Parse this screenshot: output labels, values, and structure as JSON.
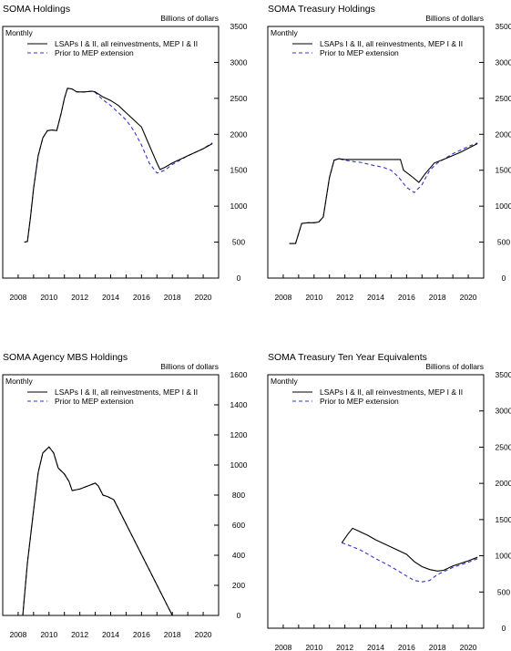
{
  "chart_data": [
    {
      "type": "line",
      "title": "SOMA Holdings",
      "frequency_label": "Monthly",
      "ylabel": "Billions of dollars",
      "ylim": [
        0,
        3500
      ],
      "yticks": [
        0,
        500,
        1000,
        1500,
        2000,
        2500,
        3000,
        3500
      ],
      "xlim": [
        2007,
        2021
      ],
      "xticks": [
        2008,
        2010,
        2012,
        2014,
        2016,
        2018,
        2020
      ],
      "legend_position": "top-left",
      "series": [
        {
          "name": "LSAPs I & II, all reinvestments, MEP I & II",
          "color": "#000000",
          "dash": "solid",
          "points": [
            [
              2008.4,
              500
            ],
            [
              2008.6,
              510
            ],
            [
              2008.8,
              850
            ],
            [
              2009.0,
              1250
            ],
            [
              2009.3,
              1700
            ],
            [
              2009.6,
              1950
            ],
            [
              2009.9,
              2050
            ],
            [
              2010.2,
              2060
            ],
            [
              2010.5,
              2050
            ],
            [
              2010.8,
              2300
            ],
            [
              2011.0,
              2500
            ],
            [
              2011.2,
              2640
            ],
            [
              2011.5,
              2630
            ],
            [
              2011.8,
              2590
            ],
            [
              2012.3,
              2590
            ],
            [
              2012.8,
              2600
            ],
            [
              2013.0,
              2590
            ],
            [
              2013.5,
              2520
            ],
            [
              2014.0,
              2470
            ],
            [
              2014.5,
              2400
            ],
            [
              2015.0,
              2300
            ],
            [
              2015.5,
              2200
            ],
            [
              2016.0,
              2100
            ],
            [
              2016.5,
              1850
            ],
            [
              2017.0,
              1600
            ],
            [
              2017.2,
              1510
            ],
            [
              2017.5,
              1540
            ],
            [
              2018.0,
              1600
            ],
            [
              2019.0,
              1700
            ],
            [
              2020.0,
              1800
            ],
            [
              2020.6,
              1870
            ]
          ]
        },
        {
          "name": "Prior to MEP extension",
          "color": "#3333cc",
          "dash": "dashed",
          "points": [
            [
              2008.4,
              500
            ],
            [
              2008.6,
              510
            ],
            [
              2008.8,
              850
            ],
            [
              2009.0,
              1250
            ],
            [
              2009.3,
              1700
            ],
            [
              2009.6,
              1950
            ],
            [
              2009.9,
              2050
            ],
            [
              2010.2,
              2060
            ],
            [
              2010.5,
              2050
            ],
            [
              2010.8,
              2300
            ],
            [
              2011.0,
              2500
            ],
            [
              2011.2,
              2640
            ],
            [
              2011.5,
              2630
            ],
            [
              2011.8,
              2590
            ],
            [
              2012.3,
              2590
            ],
            [
              2012.8,
              2600
            ],
            [
              2013.0,
              2580
            ],
            [
              2013.5,
              2480
            ],
            [
              2014.0,
              2400
            ],
            [
              2014.5,
              2300
            ],
            [
              2015.0,
              2200
            ],
            [
              2015.5,
              2050
            ],
            [
              2016.0,
              1850
            ],
            [
              2016.5,
              1600
            ],
            [
              2017.0,
              1460
            ],
            [
              2017.5,
              1500
            ],
            [
              2018.0,
              1580
            ],
            [
              2019.0,
              1700
            ],
            [
              2020.0,
              1800
            ],
            [
              2020.6,
              1880
            ]
          ]
        }
      ]
    },
    {
      "type": "line",
      "title": "SOMA Treasury Holdings",
      "frequency_label": "Monthly",
      "ylabel": "Billions of dollars",
      "ylim": [
        0,
        3500
      ],
      "yticks": [
        0,
        500,
        1000,
        1500,
        2000,
        2500,
        3000,
        3500
      ],
      "xlim": [
        2007,
        2021
      ],
      "xticks": [
        2008,
        2010,
        2012,
        2014,
        2016,
        2018,
        2020
      ],
      "legend_position": "top-left",
      "series": [
        {
          "name": "LSAPs I & II, all reinvestments, MEP I & II",
          "color": "#000000",
          "dash": "solid",
          "points": [
            [
              2008.4,
              480
            ],
            [
              2008.8,
              480
            ],
            [
              2009.2,
              760
            ],
            [
              2009.6,
              770
            ],
            [
              2010.0,
              770
            ],
            [
              2010.3,
              780
            ],
            [
              2010.6,
              850
            ],
            [
              2011.0,
              1400
            ],
            [
              2011.3,
              1640
            ],
            [
              2011.6,
              1660
            ],
            [
              2012.0,
              1650
            ],
            [
              2013.0,
              1650
            ],
            [
              2014.0,
              1650
            ],
            [
              2015.0,
              1650
            ],
            [
              2015.6,
              1650
            ],
            [
              2015.8,
              1500
            ],
            [
              2016.3,
              1420
            ],
            [
              2016.8,
              1330
            ],
            [
              2017.2,
              1450
            ],
            [
              2017.8,
              1600
            ],
            [
              2018.5,
              1660
            ],
            [
              2019.5,
              1750
            ],
            [
              2020.6,
              1870
            ]
          ]
        },
        {
          "name": "Prior to MEP extension",
          "color": "#3333cc",
          "dash": "dashed",
          "points": [
            [
              2008.4,
              480
            ],
            [
              2008.8,
              480
            ],
            [
              2009.2,
              760
            ],
            [
              2009.6,
              770
            ],
            [
              2010.0,
              770
            ],
            [
              2010.3,
              780
            ],
            [
              2010.6,
              850
            ],
            [
              2011.0,
              1400
            ],
            [
              2011.3,
              1640
            ],
            [
              2011.6,
              1660
            ],
            [
              2012.0,
              1640
            ],
            [
              2012.6,
              1620
            ],
            [
              2013.0,
              1610
            ],
            [
              2013.8,
              1570
            ],
            [
              2014.5,
              1540
            ],
            [
              2015.0,
              1500
            ],
            [
              2015.5,
              1400
            ],
            [
              2016.0,
              1260
            ],
            [
              2016.5,
              1190
            ],
            [
              2017.0,
              1300
            ],
            [
              2017.5,
              1500
            ],
            [
              2018.0,
              1600
            ],
            [
              2019.0,
              1730
            ],
            [
              2020.0,
              1830
            ],
            [
              2020.6,
              1880
            ]
          ]
        }
      ]
    },
    {
      "type": "line",
      "title": "SOMA Agency MBS Holdings",
      "frequency_label": "Monthly",
      "ylabel": "Billions of dollars",
      "ylim": [
        0,
        1600
      ],
      "yticks": [
        0,
        200,
        400,
        600,
        800,
        1000,
        1200,
        1400,
        1600
      ],
      "xlim": [
        2007,
        2021
      ],
      "xticks": [
        2008,
        2010,
        2012,
        2014,
        2016,
        2018,
        2020
      ],
      "legend_position": "top-left",
      "series": [
        {
          "name": "LSAPs I & II, all reinvestments, MEP I & II",
          "color": "#000000",
          "dash": "solid",
          "points": [
            [
              2007,
              0
            ],
            [
              2008.3,
              0
            ],
            [
              2008.6,
              350
            ],
            [
              2009.0,
              700
            ],
            [
              2009.3,
              950
            ],
            [
              2009.6,
              1080
            ],
            [
              2010.0,
              1120
            ],
            [
              2010.3,
              1080
            ],
            [
              2010.6,
              980
            ],
            [
              2011.0,
              940
            ],
            [
              2011.3,
              890
            ],
            [
              2011.5,
              830
            ],
            [
              2012.0,
              840
            ],
            [
              2012.5,
              860
            ],
            [
              2013.0,
              880
            ],
            [
              2013.2,
              860
            ],
            [
              2013.5,
              800
            ],
            [
              2013.8,
              790
            ],
            [
              2014.2,
              770
            ],
            [
              2018.0,
              0
            ],
            [
              2021.0,
              0
            ]
          ]
        },
        {
          "name": "Prior to MEP extension",
          "color": "#3333cc",
          "dash": "dashed",
          "points": [
            [
              2007,
              0
            ],
            [
              2008.3,
              0
            ],
            [
              2008.6,
              350
            ],
            [
              2009.0,
              700
            ],
            [
              2009.3,
              950
            ],
            [
              2009.6,
              1080
            ],
            [
              2010.0,
              1120
            ],
            [
              2010.3,
              1080
            ],
            [
              2010.6,
              980
            ],
            [
              2011.0,
              940
            ],
            [
              2011.3,
              890
            ],
            [
              2011.5,
              830
            ],
            [
              2012.0,
              840
            ],
            [
              2012.5,
              860
            ],
            [
              2013.0,
              880
            ],
            [
              2013.2,
              860
            ],
            [
              2013.5,
              800
            ],
            [
              2013.8,
              790
            ],
            [
              2014.2,
              770
            ],
            [
              2018.0,
              0
            ],
            [
              2021.0,
              0
            ]
          ]
        }
      ]
    },
    {
      "type": "line",
      "title": "SOMA Treasury Ten Year Equivalents",
      "frequency_label": "Monthly",
      "ylabel": "Billions of dollars",
      "ylim": [
        0,
        3500
      ],
      "yticks": [
        0,
        500,
        1000,
        1500,
        2000,
        2500,
        3000,
        3500
      ],
      "xlim": [
        2007,
        2021
      ],
      "xticks": [
        2008,
        2010,
        2012,
        2014,
        2016,
        2018,
        2020
      ],
      "legend_position": "top-left",
      "series": [
        {
          "name": "LSAPs I & II, all reinvestments, MEP I & II",
          "color": "#000000",
          "dash": "solid",
          "points": [
            [
              2011.8,
              1180
            ],
            [
              2012.2,
              1300
            ],
            [
              2012.5,
              1380
            ],
            [
              2012.8,
              1350
            ],
            [
              2013.5,
              1280
            ],
            [
              2014.0,
              1220
            ],
            [
              2015.0,
              1120
            ],
            [
              2016.0,
              1020
            ],
            [
              2016.5,
              920
            ],
            [
              2017.0,
              850
            ],
            [
              2017.5,
              810
            ],
            [
              2018.0,
              790
            ],
            [
              2018.4,
              800
            ],
            [
              2019.0,
              860
            ],
            [
              2020.0,
              930
            ],
            [
              2020.6,
              980
            ]
          ]
        },
        {
          "name": "Prior to MEP extension",
          "color": "#3333cc",
          "dash": "dashed",
          "points": [
            [
              2011.8,
              1180
            ],
            [
              2012.2,
              1150
            ],
            [
              2013.0,
              1080
            ],
            [
              2014.0,
              960
            ],
            [
              2015.0,
              850
            ],
            [
              2016.0,
              720
            ],
            [
              2016.5,
              660
            ],
            [
              2017.0,
              640
            ],
            [
              2017.5,
              660
            ],
            [
              2018.0,
              740
            ],
            [
              2019.0,
              840
            ],
            [
              2020.0,
              910
            ],
            [
              2020.6,
              960
            ]
          ]
        }
      ]
    }
  ]
}
